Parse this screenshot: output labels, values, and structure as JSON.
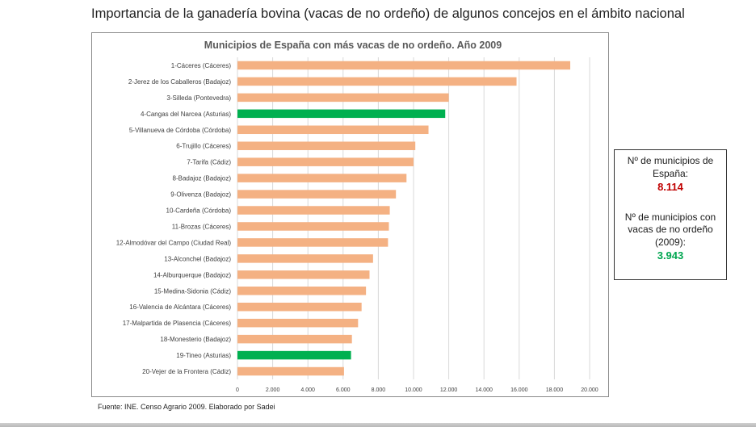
{
  "page": {
    "title": "Importancia de la ganadería bovina (vacas de no ordeño) de algunos concejos en el ámbito nacional",
    "source": "Fuente: INE. Censo Agrario 2009. Elaborado por Sadei"
  },
  "info_box": {
    "label1": "Nº de municipios de España:",
    "value1": "8.114",
    "label2": "Nº de municipios con vacas de no ordeño (2009):",
    "value2": "3.943",
    "value1_color": "#c00000",
    "value2_color": "#00a650"
  },
  "chart_data": {
    "type": "bar",
    "orientation": "horizontal",
    "title": "Municipios de España con más vacas de no ordeño. Año 2009",
    "categories": [
      "1-Cáceres (Cáceres)",
      "2-Jerez de los Caballeros (Badajoz)",
      "3-Silleda (Pontevedra)",
      "4-Cangas del Narcea (Asturias)",
      "5-Villanueva de Córdoba (Córdoba)",
      "6-Trujillo (Cáceres)",
      "7-Tarifa (Cádiz)",
      "8-Badajoz (Badajoz)",
      "9-Olivenza (Badajoz)",
      "10-Cardeña (Córdoba)",
      "11-Brozas (Cáceres)",
      "12-Almodóvar del Campo (Ciudad Real)",
      "13-Alconchel (Badajoz)",
      "14-Alburquerque (Badajoz)",
      "15-Medina-Sidonia (Cádiz)",
      "16-Valencia de Alcántara (Cáceres)",
      "17-Malpartida de Plasencia (Cáceres)",
      "18-Monesterio (Badajoz)",
      "19-Tineo (Asturias)",
      "20-Vejer de la Frontera (Cádiz)"
    ],
    "values": [
      18900,
      15850,
      12000,
      11800,
      10850,
      10100,
      10000,
      9600,
      9000,
      8650,
      8600,
      8550,
      7700,
      7500,
      7300,
      7050,
      6850,
      6500,
      6450,
      6050
    ],
    "highlighted": [
      false,
      false,
      false,
      true,
      false,
      false,
      false,
      false,
      false,
      false,
      false,
      false,
      false,
      false,
      false,
      false,
      false,
      false,
      true,
      false
    ],
    "xlim": [
      0,
      20000
    ],
    "xticks": [
      0,
      2000,
      4000,
      6000,
      8000,
      10000,
      12000,
      14000,
      16000,
      18000,
      20000
    ],
    "xtick_labels": [
      "0",
      "2.000",
      "4.000",
      "6.000",
      "8.000",
      "10.000",
      "12.000",
      "14.000",
      "16.000",
      "18.000",
      "20.000"
    ],
    "grid": true,
    "colors": {
      "default": "#f4b183",
      "highlight": "#00b050",
      "grid": "#d9d9d9"
    }
  }
}
